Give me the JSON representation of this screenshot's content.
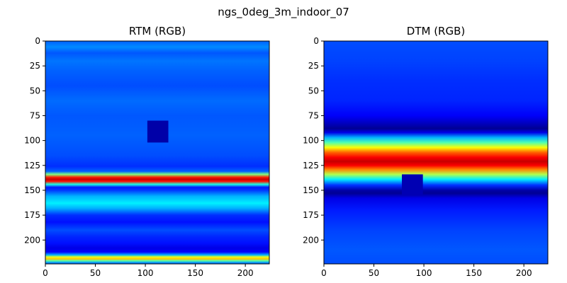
{
  "figure": {
    "title": "ngs_0deg_3m_indoor_07"
  },
  "chart_data": [
    {
      "type": "heatmap",
      "title": "RTM (RGB)",
      "colormap": "jet",
      "xlim": [
        0,
        224
      ],
      "ylim": [
        224,
        0
      ],
      "xticks": [
        0,
        50,
        100,
        150,
        200
      ],
      "yticks": [
        0,
        25,
        50,
        75,
        100,
        125,
        150,
        175,
        200
      ],
      "bands": [
        {
          "y": 0,
          "v": 0.22
        },
        {
          "y": 6,
          "v": 0.26
        },
        {
          "y": 12,
          "v": 0.21
        },
        {
          "y": 20,
          "v": 0.24
        },
        {
          "y": 30,
          "v": 0.22
        },
        {
          "y": 45,
          "v": 0.2
        },
        {
          "y": 60,
          "v": 0.23
        },
        {
          "y": 75,
          "v": 0.21
        },
        {
          "y": 95,
          "v": 0.22
        },
        {
          "y": 115,
          "v": 0.2
        },
        {
          "y": 126,
          "v": 0.17
        },
        {
          "y": 131,
          "v": 0.22
        },
        {
          "y": 134,
          "v": 0.5
        },
        {
          "y": 137,
          "v": 0.85
        },
        {
          "y": 139,
          "v": 0.93
        },
        {
          "y": 141,
          "v": 0.86
        },
        {
          "y": 144,
          "v": 0.4
        },
        {
          "y": 147,
          "v": 0.15
        },
        {
          "y": 150,
          "v": 0.18
        },
        {
          "y": 156,
          "v": 0.3
        },
        {
          "y": 163,
          "v": 0.36
        },
        {
          "y": 168,
          "v": 0.3
        },
        {
          "y": 175,
          "v": 0.17
        },
        {
          "y": 182,
          "v": 0.14
        },
        {
          "y": 190,
          "v": 0.2
        },
        {
          "y": 197,
          "v": 0.16
        },
        {
          "y": 203,
          "v": 0.14
        },
        {
          "y": 208,
          "v": 0.1
        },
        {
          "y": 212,
          "v": 0.12
        },
        {
          "y": 215,
          "v": 0.3
        },
        {
          "y": 217,
          "v": 0.6
        },
        {
          "y": 219,
          "v": 0.68
        },
        {
          "y": 221,
          "v": 0.45
        },
        {
          "y": 223,
          "v": 0.25
        }
      ],
      "blocks": [
        {
          "x0": 102,
          "x1": 123,
          "y0": 80,
          "y1": 102,
          "v": 0.04
        }
      ]
    },
    {
      "type": "heatmap",
      "title": "DTM (RGB)",
      "colormap": "jet",
      "xlim": [
        0,
        224
      ],
      "ylim": [
        224,
        0
      ],
      "xticks": [
        0,
        50,
        100,
        150,
        200
      ],
      "yticks": [
        0,
        25,
        50,
        75,
        100,
        125,
        150,
        175,
        200
      ],
      "bands": [
        {
          "y": 0,
          "v": 0.2
        },
        {
          "y": 20,
          "v": 0.19
        },
        {
          "y": 40,
          "v": 0.17
        },
        {
          "y": 60,
          "v": 0.16
        },
        {
          "y": 75,
          "v": 0.12
        },
        {
          "y": 83,
          "v": 0.06
        },
        {
          "y": 88,
          "v": 0.02
        },
        {
          "y": 92,
          "v": 0.1
        },
        {
          "y": 97,
          "v": 0.3
        },
        {
          "y": 102,
          "v": 0.45
        },
        {
          "y": 107,
          "v": 0.62
        },
        {
          "y": 112,
          "v": 0.78
        },
        {
          "y": 117,
          "v": 0.88
        },
        {
          "y": 121,
          "v": 0.93
        },
        {
          "y": 125,
          "v": 0.88
        },
        {
          "y": 129,
          "v": 0.75
        },
        {
          "y": 134,
          "v": 0.55
        },
        {
          "y": 139,
          "v": 0.36
        },
        {
          "y": 145,
          "v": 0.17
        },
        {
          "y": 150,
          "v": 0.04
        },
        {
          "y": 153,
          "v": 0.02
        },
        {
          "y": 158,
          "v": 0.1
        },
        {
          "y": 170,
          "v": 0.15
        },
        {
          "y": 190,
          "v": 0.19
        },
        {
          "y": 210,
          "v": 0.21
        },
        {
          "y": 223,
          "v": 0.2
        }
      ],
      "blocks": [
        {
          "x0": 78,
          "x1": 99,
          "y0": 134,
          "y1": 155,
          "v": 0.05
        }
      ]
    }
  ]
}
